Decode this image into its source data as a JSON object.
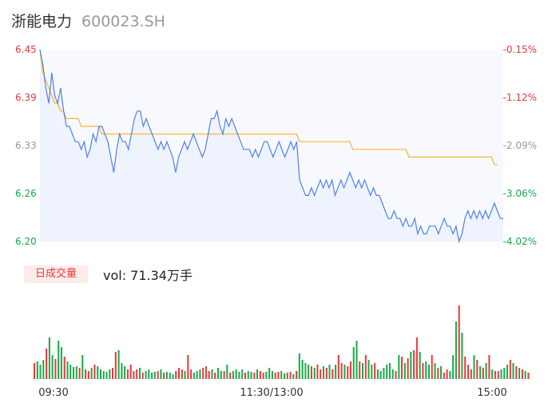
{
  "header": {
    "name": "浙能电力",
    "code": "600023.SH"
  },
  "volume_panel": {
    "tab_label": "日成交量",
    "vol_text": "vol: 71.34万手"
  },
  "chart_data": [
    {
      "type": "line",
      "title": "",
      "y_left_ticks": [
        "6.45",
        "6.39",
        "6.33",
        "6.26",
        "6.20"
      ],
      "y_right_ticks": [
        "-0.15%",
        "-1.12%",
        "-2.09%",
        "-3.06%",
        "-4.02%"
      ],
      "x_ticks": [
        "09:30",
        "11:30/13:00",
        "15:00"
      ],
      "ylim": [
        6.2,
        6.45
      ],
      "colors": {
        "price": "#4f82e6",
        "average": "#f5b731",
        "up": "#e83a3a",
        "down": "#1aaa4a",
        "neutral": "#333333"
      },
      "series": [
        {
          "values": [
            6.45,
            6.43,
            6.4,
            6.38,
            6.42,
            6.39,
            6.38,
            6.4,
            6.37,
            6.35,
            6.35,
            6.34,
            6.33,
            6.33,
            6.32,
            6.33,
            6.31,
            6.32,
            6.34,
            6.33,
            6.35,
            6.35,
            6.34,
            6.33,
            6.31,
            6.29,
            6.32,
            6.34,
            6.33,
            6.33,
            6.32,
            6.34,
            6.36,
            6.37,
            6.37,
            6.35,
            6.36,
            6.35,
            6.34,
            6.33,
            6.32,
            6.33,
            6.32,
            6.33,
            6.32,
            6.31,
            6.29,
            6.31,
            6.32,
            6.33,
            6.32,
            6.33,
            6.34,
            6.33,
            6.32,
            6.31,
            6.32,
            6.34,
            6.36,
            6.36,
            6.37,
            6.35,
            6.34,
            6.36,
            6.35,
            6.36,
            6.35,
            6.34,
            6.33,
            6.32,
            6.32,
            6.32,
            6.31,
            6.32,
            6.31,
            6.32,
            6.33,
            6.33,
            6.32,
            6.31,
            6.32,
            6.33,
            6.32,
            6.31,
            6.32,
            6.33,
            6.32,
            6.33,
            6.28,
            6.27,
            6.26,
            6.26,
            6.27,
            6.26,
            6.27,
            6.28,
            6.27,
            6.28,
            6.27,
            6.28,
            6.26,
            6.27,
            6.28,
            6.27,
            6.28,
            6.29,
            6.28,
            6.27,
            6.28,
            6.27,
            6.28,
            6.27,
            6.26,
            6.27,
            6.26,
            6.26,
            6.25,
            6.24,
            6.23,
            6.23,
            6.24,
            6.23,
            6.23,
            6.22,
            6.23,
            6.22,
            6.22,
            6.23,
            6.21,
            6.22,
            6.21,
            6.21,
            6.22,
            6.22,
            6.22,
            6.21,
            6.22,
            6.23,
            6.22,
            6.22,
            6.21,
            6.22,
            6.2,
            6.21,
            6.23,
            6.24,
            6.23,
            6.24,
            6.23,
            6.24,
            6.23,
            6.24,
            6.23,
            6.24,
            6.25,
            6.24,
            6.23,
            6.23
          ]
        },
        {
          "values": [
            6.45,
            6.42,
            6.41,
            6.4,
            6.39,
            6.38,
            6.38,
            6.37,
            6.37,
            6.36,
            6.36,
            6.36,
            6.36,
            6.36,
            6.35,
            6.35,
            6.35,
            6.35,
            6.35,
            6.35,
            6.35,
            6.34,
            6.34,
            6.34,
            6.34,
            6.34,
            6.34,
            6.34,
            6.34,
            6.34,
            6.34,
            6.34,
            6.34,
            6.34,
            6.34,
            6.34,
            6.34,
            6.34,
            6.34,
            6.34,
            6.34,
            6.34,
            6.34,
            6.34,
            6.34,
            6.34,
            6.34,
            6.34,
            6.34,
            6.34,
            6.34,
            6.34,
            6.34,
            6.34,
            6.34,
            6.34,
            6.34,
            6.34,
            6.34,
            6.34,
            6.34,
            6.34,
            6.34,
            6.34,
            6.34,
            6.34,
            6.34,
            6.34,
            6.34,
            6.34,
            6.34,
            6.34,
            6.34,
            6.34,
            6.34,
            6.34,
            6.34,
            6.34,
            6.34,
            6.34,
            6.34,
            6.34,
            6.34,
            6.34,
            6.34,
            6.34,
            6.34,
            6.34,
            6.33,
            6.33,
            6.33,
            6.33,
            6.33,
            6.33,
            6.33,
            6.33,
            6.33,
            6.33,
            6.33,
            6.33,
            6.33,
            6.33,
            6.33,
            6.33,
            6.33,
            6.33,
            6.32,
            6.32,
            6.32,
            6.32,
            6.32,
            6.32,
            6.32,
            6.32,
            6.32,
            6.32,
            6.32,
            6.32,
            6.32,
            6.32,
            6.32,
            6.32,
            6.32,
            6.32,
            6.32,
            6.31,
            6.31,
            6.31,
            6.31,
            6.31,
            6.31,
            6.31,
            6.31,
            6.31,
            6.31,
            6.31,
            6.31,
            6.31,
            6.31,
            6.31,
            6.31,
            6.31,
            6.31,
            6.31,
            6.31,
            6.31,
            6.31,
            6.31,
            6.31,
            6.31,
            6.31,
            6.31,
            6.31,
            6.31,
            6.3,
            6.3
          ]
        }
      ]
    },
    {
      "type": "bar",
      "title": "",
      "series": [
        {
          "values": [
            20,
            22,
            18,
            24,
            38,
            52,
            30,
            25,
            48,
            40,
            28,
            22,
            18,
            15,
            16,
            14,
            30,
            12,
            10,
            14,
            18,
            16,
            12,
            10,
            9,
            12,
            14,
            34,
            36,
            20,
            16,
            12,
            18,
            10,
            12,
            14,
            8,
            10,
            12,
            8,
            9,
            10,
            12,
            8,
            9,
            8,
            6,
            10,
            14,
            12,
            10,
            30,
            12,
            8,
            10,
            12,
            14,
            16,
            10,
            12,
            8,
            14,
            10,
            10,
            18,
            8,
            10,
            12,
            9,
            12,
            8,
            10,
            9,
            8,
            12,
            10,
            8,
            9,
            14,
            10,
            8,
            9,
            10,
            7,
            8,
            9,
            6,
            10,
            32,
            24,
            20,
            18,
            16,
            14,
            18,
            12,
            16,
            14,
            18,
            12,
            18,
            30,
            20,
            18,
            16,
            22,
            40,
            48,
            22,
            20,
            30,
            24,
            18,
            20,
            12,
            10,
            14,
            18,
            20,
            12,
            10,
            30,
            28,
            20,
            26,
            34,
            36,
            52,
            34,
            20,
            22,
            18,
            30,
            20,
            14,
            16,
            8,
            12,
            10,
            30,
            72,
            92,
            58,
            28,
            18,
            12,
            30,
            24,
            16,
            14,
            20,
            30,
            12,
            10,
            10,
            12,
            14,
            18,
            24,
            20,
            16,
            14,
            12,
            10,
            8
          ]
        }
      ]
    }
  ]
}
